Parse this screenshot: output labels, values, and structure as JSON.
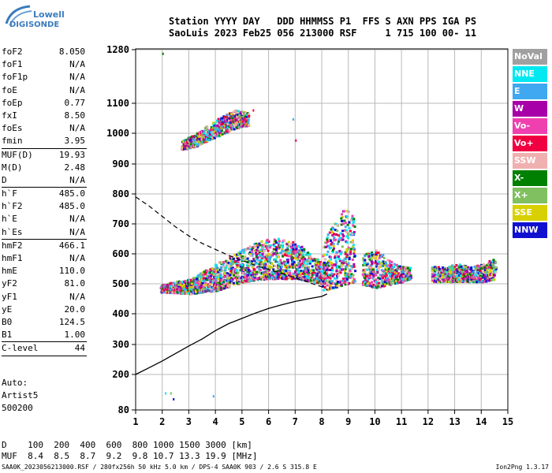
{
  "logo": {
    "line1": "Lowell",
    "line2": "DIGISONDE"
  },
  "header": {
    "line1": "Station YYYY DAY   DDD HHMMSS P1  FFS S AXN PPS IGA PS",
    "line2": "SaoLuis 2023 Feb25 056 213000 RSF     1 715 100 00- 11"
  },
  "params": [
    {
      "name": "foF2",
      "value": "8.050"
    },
    {
      "name": "foF1",
      "value": "N/A"
    },
    {
      "name": "foF1p",
      "value": "N/A"
    },
    {
      "name": "foE",
      "value": "N/A"
    },
    {
      "name": "foEp",
      "value": "0.77"
    },
    {
      "name": "fxI",
      "value": "8.50"
    },
    {
      "name": "foEs",
      "value": "N/A"
    },
    {
      "name": "fmin",
      "value": "3.95"
    },
    {
      "sep": true
    },
    {
      "name": "MUF(D)",
      "value": "19.93"
    },
    {
      "name": "M(D)",
      "value": "2.48"
    },
    {
      "name": "D",
      "value": "N/A"
    },
    {
      "sep": true
    },
    {
      "name": "h`F",
      "value": "485.0"
    },
    {
      "name": "h`F2",
      "value": "485.0"
    },
    {
      "name": "h`E",
      "value": "N/A"
    },
    {
      "name": "h`Es",
      "value": "N/A"
    },
    {
      "sep": true
    },
    {
      "name": "hmF2",
      "value": "466.1"
    },
    {
      "name": "hmF1",
      "value": "N/A"
    },
    {
      "name": "hmE",
      "value": "110.0"
    },
    {
      "name": "yF2",
      "value": "81.0"
    },
    {
      "name": "yF1",
      "value": "N/A"
    },
    {
      "name": "yE",
      "value": "20.0"
    },
    {
      "name": "B0",
      "value": "124.5"
    },
    {
      "name": "B1",
      "value": "1.00"
    },
    {
      "sep": true
    },
    {
      "name": "C-level",
      "value": "44"
    },
    {
      "sep": true
    }
  ],
  "auto": {
    "line1": "Auto:",
    "line2": "Artist5",
    "line3": "500200"
  },
  "dmuf": {
    "d_line": "D    100  200  400  600  800 1000 1500 3000 [km]",
    "muf_line": "MUF  8.4  8.5  8.7  9.2  9.8 10.7 13.3 19.9 [MHz]"
  },
  "footer": {
    "left": "SAA0K_2023056213000.RSF / 280fx256h 50 kHz 5.0 km / DPS-4 SAA0K 903 / 2.6 S 315.8 E",
    "right": "Ion2Png 1.3.17"
  },
  "legend": [
    {
      "label": "NoVal",
      "color": "#a0a0a0"
    },
    {
      "label": "NNE",
      "color": "#00e8f0"
    },
    {
      "label": "E",
      "color": "#40a8f0"
    },
    {
      "label": "W",
      "color": "#a800a8"
    },
    {
      "label": "Vo-",
      "color": "#f040b0"
    },
    {
      "label": "Vo+",
      "color": "#f00040"
    },
    {
      "label": "SSW",
      "color": "#f0b0b0"
    },
    {
      "label": "X-",
      "color": "#008000"
    },
    {
      "label": "X+",
      "color": "#80c060"
    },
    {
      "label": "SSE",
      "color": "#d8d000"
    },
    {
      "label": "NNW",
      "color": "#1010d0"
    }
  ],
  "chart_data": {
    "type": "scatter",
    "xlim": [
      1,
      15
    ],
    "ylim": [
      80,
      1280
    ],
    "xticks": [
      1,
      2,
      3,
      4,
      5,
      6,
      7,
      8,
      9,
      10,
      11,
      12,
      13,
      14,
      15
    ],
    "yticks": [
      80,
      200,
      300,
      400,
      500,
      600,
      700,
      800,
      900,
      1000,
      1100,
      1280
    ],
    "grid": true,
    "traces": [
      {
        "name": "F2 main trace",
        "xrange": [
          1.9,
          8.1
        ],
        "h_bottom": [
          475,
          470,
          480,
          510,
          520,
          520,
          500
        ],
        "h_top": [
          500,
          520,
          570,
          620,
          660,
          640,
          560
        ],
        "x": [
          1.9,
          3,
          4,
          5,
          6,
          7,
          8.1
        ]
      },
      {
        "name": "upper echo",
        "x": [
          2.7,
          3.2,
          3.7,
          4.2,
          4.7,
          5.2
        ],
        "h_bottom": [
          950,
          960,
          980,
          1000,
          1020,
          1030
        ],
        "h_top": [
          980,
          1000,
          1030,
          1060,
          1080,
          1070
        ]
      },
      {
        "name": "spread 8-9",
        "x": [
          8,
          8.4,
          8.8,
          9.2
        ],
        "h_bottom": [
          480,
          490,
          500,
          510
        ],
        "h_top": [
          650,
          700,
          760,
          720
        ]
      },
      {
        "name": "spread 9-11",
        "x": [
          9.5,
          10,
          10.5,
          11,
          11.3
        ],
        "h_bottom": [
          500,
          490,
          500,
          510,
          520
        ],
        "h_top": [
          600,
          620,
          580,
          560,
          560
        ]
      },
      {
        "name": "spread 12-14.5",
        "x": [
          12.1,
          12.6,
          13.1,
          13.6,
          14.1,
          14.5
        ],
        "h_bottom": [
          510,
          510,
          510,
          510,
          510,
          520
        ],
        "h_top": [
          560,
          560,
          570,
          560,
          570,
          600
        ]
      }
    ],
    "profile_solid": {
      "x": [
        1,
        1.5,
        2,
        2.5,
        3,
        3.5,
        4,
        4.5,
        5,
        5.5,
        6,
        6.5,
        7,
        7.5,
        8,
        8.2
      ],
      "y": [
        200,
        222,
        245,
        270,
        295,
        318,
        345,
        368,
        385,
        402,
        418,
        430,
        441,
        450,
        458,
        466
      ]
    },
    "profile_dashed": {
      "x": [
        1,
        1.5,
        2,
        2.5,
        3,
        3.5,
        4,
        4.5,
        5,
        5.5,
        6,
        6.5,
        7,
        7.5,
        8,
        8.2
      ],
      "y": [
        790,
        760,
        725,
        690,
        660,
        635,
        615,
        595,
        578,
        562,
        548,
        535,
        520,
        505,
        490,
        480
      ]
    }
  }
}
